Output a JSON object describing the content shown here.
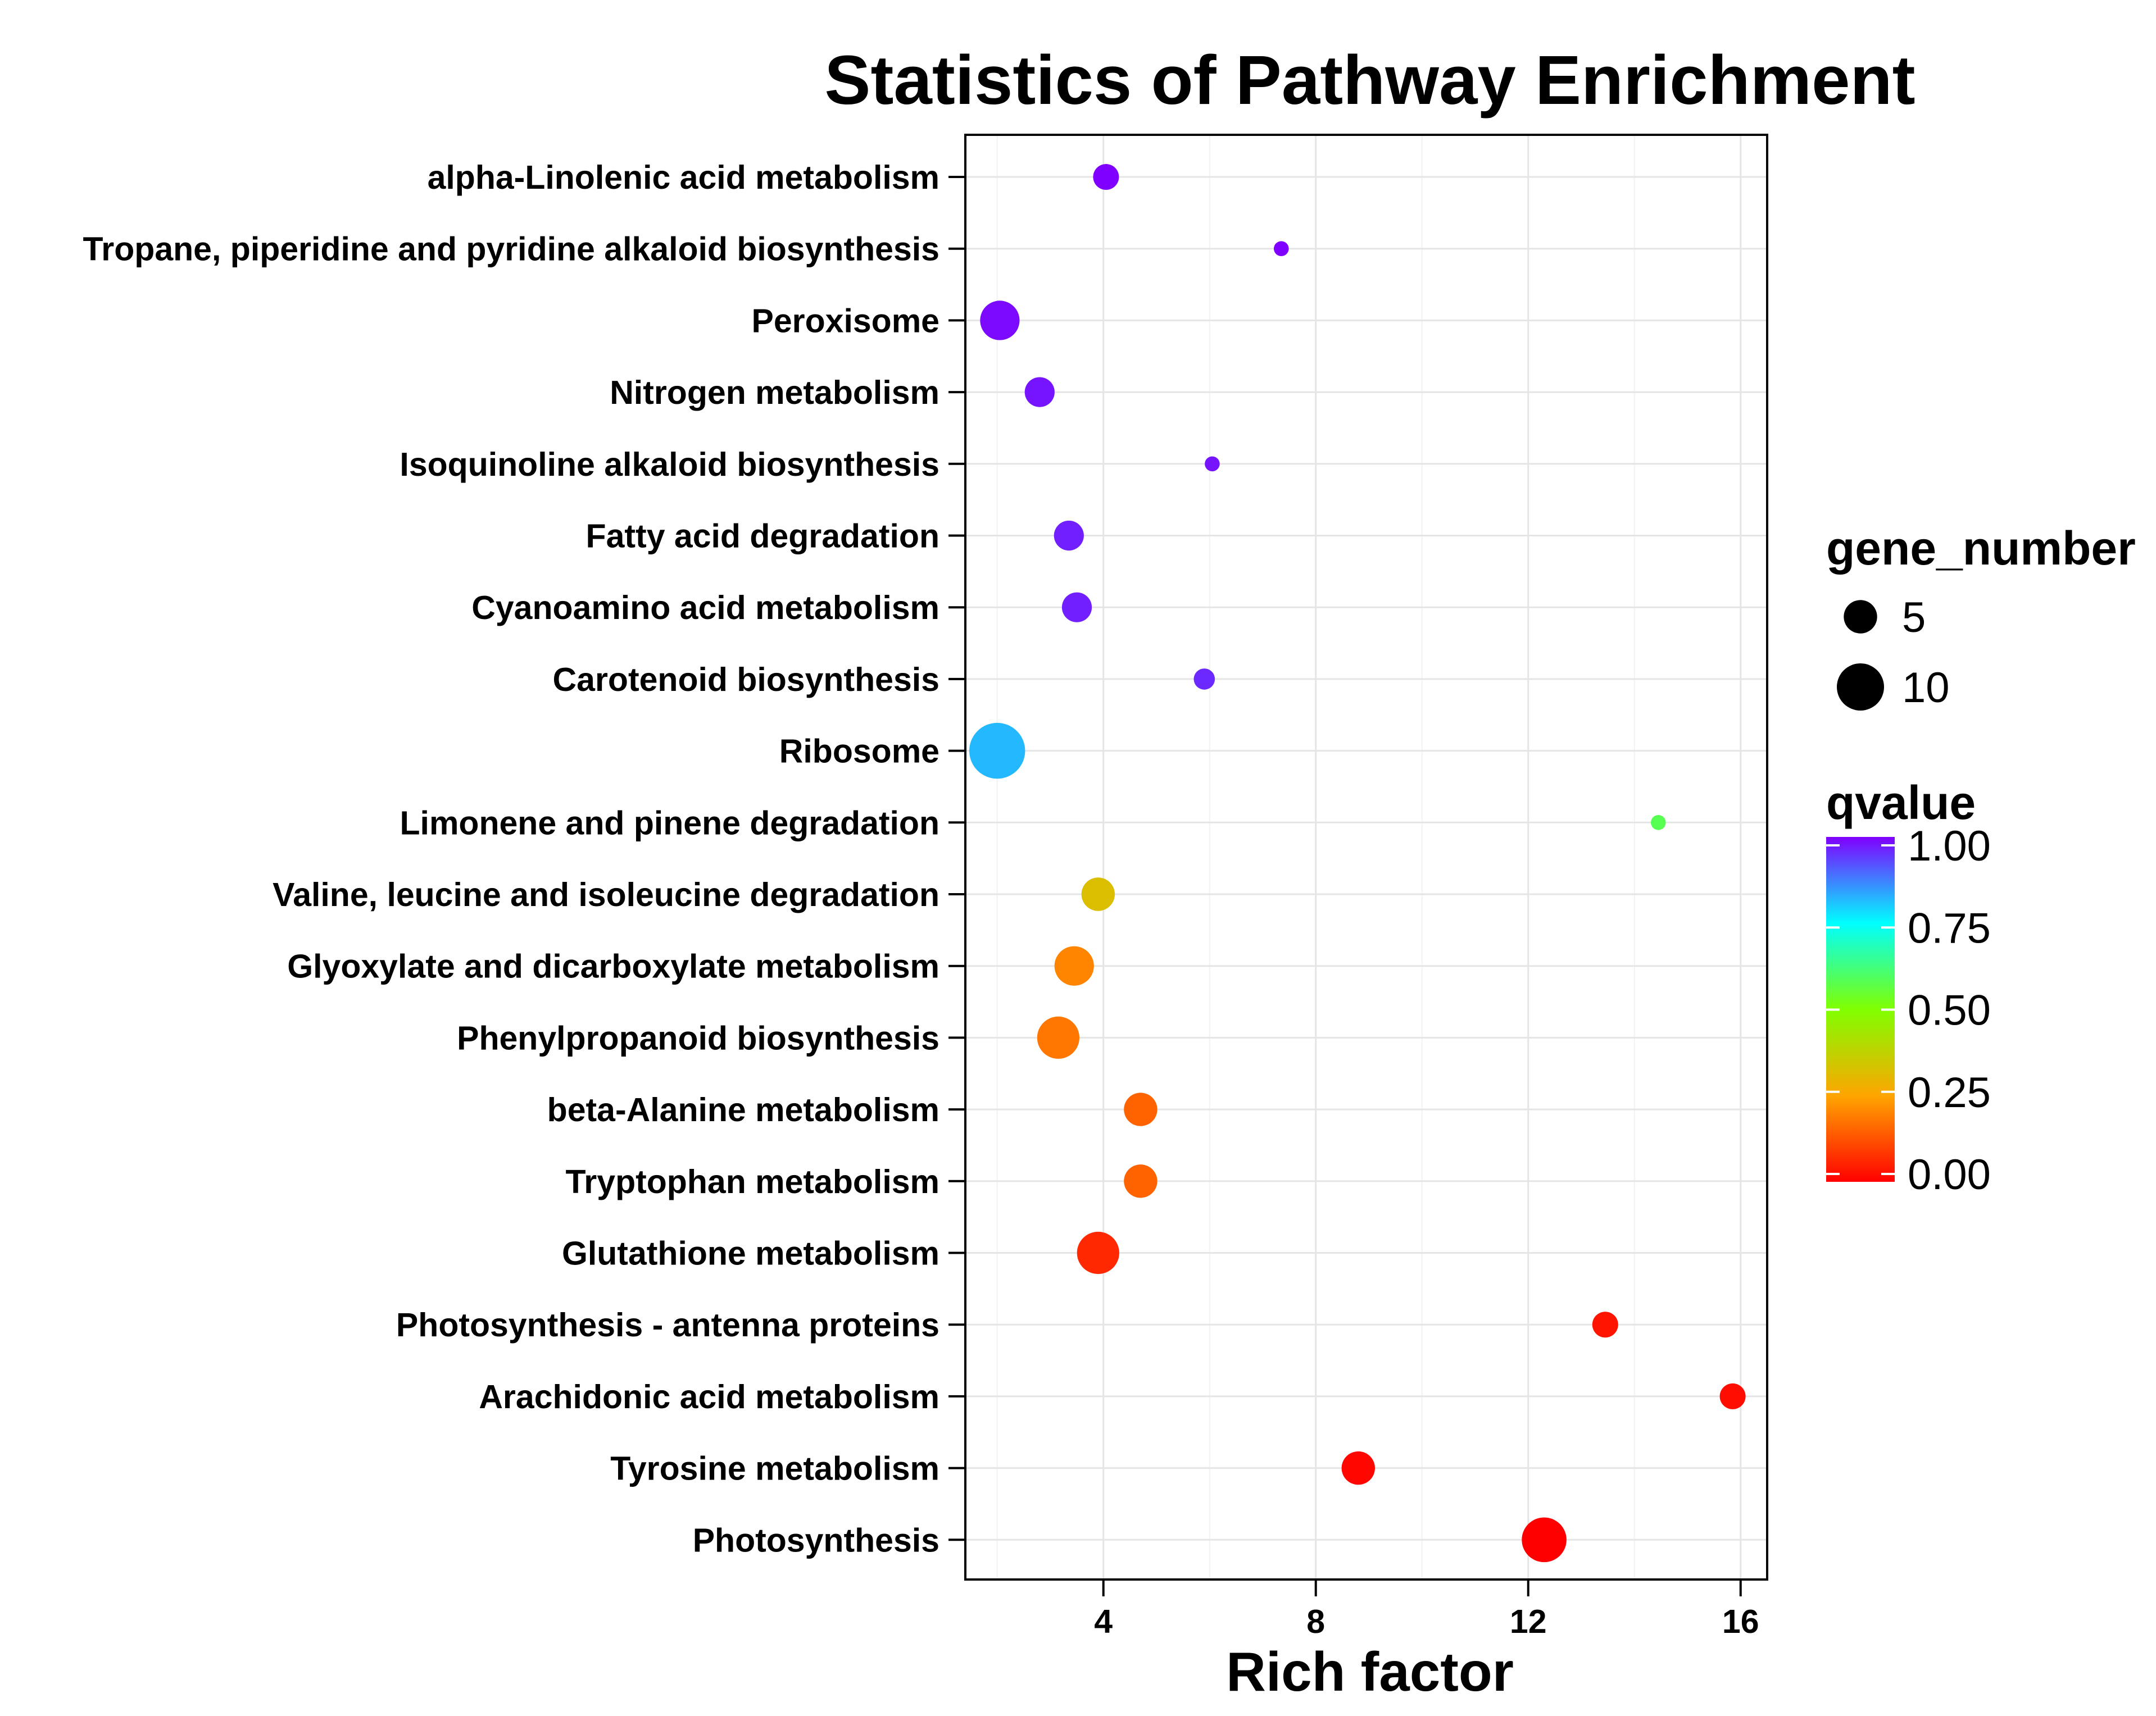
{
  "chart_data": {
    "type": "scatter",
    "title": "Statistics of Pathway Enrichment",
    "xlabel": "Rich factor",
    "ylabel": "",
    "xlim": [
      1.4,
      16.5
    ],
    "xticks": [
      4,
      8,
      12,
      16
    ],
    "xtick_labels": [
      "4",
      "8",
      "12",
      "16"
    ],
    "grid": true,
    "categories": [
      "alpha-Linolenic acid metabolism",
      "Tropane, piperidine and pyridine alkaloid biosynthesis",
      "Peroxisome",
      "Nitrogen metabolism",
      "Isoquinoline alkaloid biosynthesis",
      "Fatty acid degradation",
      "Cyanoamino acid metabolism",
      "Carotenoid biosynthesis",
      "Ribosome",
      "Limonene and pinene degradation",
      "Valine, leucine and isoleucine degradation",
      "Glyoxylate and dicarboxylate metabolism",
      "Phenylpropanoid biosynthesis",
      "beta-Alanine metabolism",
      "Tryptophan metabolism",
      "Glutathione metabolism",
      "Photosynthesis - antenna proteins",
      "Arachidonic acid metabolism",
      "Tyrosine metabolism",
      "Photosynthesis"
    ],
    "rich_factor": [
      4.05,
      7.35,
      2.05,
      2.8,
      6.05,
      3.35,
      3.5,
      5.9,
      2.0,
      14.45,
      3.9,
      3.45,
      3.15,
      4.7,
      4.7,
      3.9,
      13.45,
      15.85,
      8.8,
      12.3
    ],
    "gene_number": [
      3,
      1,
      7,
      4,
      1,
      4,
      4,
      2,
      14,
      1,
      5,
      7,
      8,
      5,
      5,
      8,
      3,
      3,
      5,
      9
    ],
    "qvalue": [
      1.0,
      1.0,
      0.99,
      0.98,
      0.98,
      0.97,
      0.97,
      0.96,
      0.82,
      0.58,
      0.32,
      0.2,
      0.18,
      0.15,
      0.15,
      0.06,
      0.03,
      0.02,
      0.01,
      0.0
    ],
    "size_legend": {
      "title": "gene_number",
      "entries": [
        {
          "label": "5",
          "value": 5
        },
        {
          "label": "10",
          "value": 10
        }
      ]
    },
    "color_legend": {
      "title": "qvalue",
      "ticks": [
        {
          "label": "1.00",
          "value": 1.0
        },
        {
          "label": "0.75",
          "value": 0.75
        },
        {
          "label": "0.50",
          "value": 0.5
        },
        {
          "label": "0.25",
          "value": 0.25
        },
        {
          "label": "0.00",
          "value": 0.0
        }
      ],
      "colors": [
        "#ff0000",
        "#ffa500",
        "#80ff00",
        "#00ffff",
        "#8000ff"
      ]
    }
  }
}
